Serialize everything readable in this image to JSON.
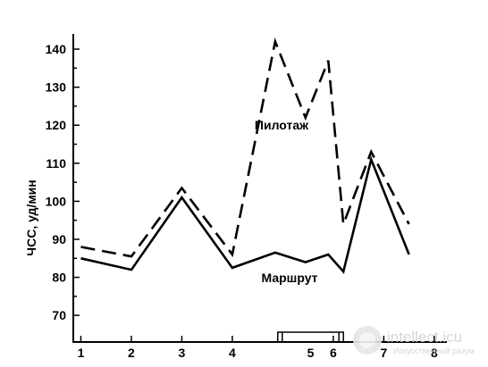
{
  "chart_data": {
    "type": "line",
    "title": "",
    "xlabel": "",
    "ylabel": "ЧСС, уд/мин",
    "ylim": [
      63,
      144
    ],
    "y_ticks": [
      70,
      80,
      90,
      100,
      110,
      120,
      130,
      140
    ],
    "x_ticks": [
      1,
      2,
      3,
      4,
      5,
      6,
      7,
      8
    ],
    "xlim": [
      0.85,
      8.25
    ],
    "interval_marker": {
      "label": "5",
      "from": 4.9,
      "to": 6.2
    },
    "series": [
      {
        "name": "Пилотаж",
        "style": "dashed",
        "x": [
          1,
          2,
          3,
          4,
          4.85,
          5.45,
          5.9,
          6.2,
          6.75,
          7.5
        ],
        "y": [
          88,
          85.5,
          103.5,
          86,
          142,
          122,
          137,
          94,
          113,
          94
        ]
      },
      {
        "name": "Маршрут",
        "style": "solid",
        "x": [
          1,
          2,
          3,
          4,
          4.85,
          5.45,
          5.9,
          6.2,
          6.75,
          7.5
        ],
        "y": [
          85,
          82,
          101,
          82.5,
          86.5,
          84,
          86,
          81.5,
          111,
          86
        ]
      }
    ]
  },
  "watermark": {
    "brand": "intellect.icu",
    "tagline": "Искусственный разум"
  }
}
